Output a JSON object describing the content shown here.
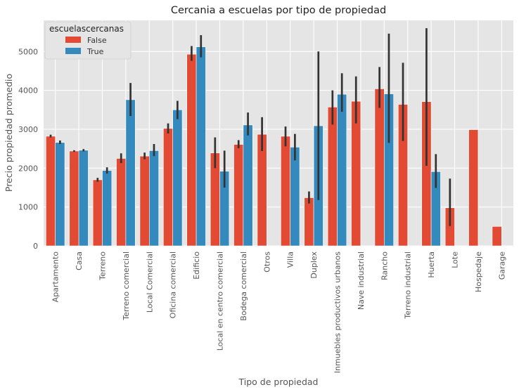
{
  "chart_data": {
    "type": "bar",
    "title": "Cercania a escuelas por tipo de propiedad",
    "xlabel": "Tipo de propiedad",
    "ylabel": "Precio propiedad promedio",
    "ylim": [
      0,
      5800
    ],
    "yticks": [
      0,
      1000,
      2000,
      3000,
      4000,
      5000
    ],
    "grid": true,
    "legend": {
      "title": "escuelascercanas",
      "placement": "top-left"
    },
    "categories": [
      "Apartamento",
      "Casa",
      "Terreno",
      "Terreno comercial",
      "Local Comercial",
      "Oficina comercial",
      "Edificio",
      "Local en centro comercial",
      "Bodega comercial",
      "Otros",
      "Villa",
      "Duplex",
      "Inmuebles productivos urbanos",
      "Nave industrial",
      "Rancho",
      "Terreno industrial",
      "Huerta",
      "Lote",
      "Hospedaje",
      "Garage"
    ],
    "series": [
      {
        "name": "False",
        "color": "#E24A33",
        "values": [
          2820,
          2440,
          1700,
          2250,
          2310,
          3020,
          4930,
          2390,
          2610,
          2870,
          2820,
          1240,
          3570,
          3720,
          4040,
          3640,
          3710,
          980,
          2990,
          500
        ],
        "err_low": [
          2790,
          2420,
          1650,
          2130,
          2230,
          2890,
          4760,
          2000,
          2510,
          2440,
          2560,
          1090,
          3120,
          3150,
          3550,
          2700,
          2060,
          510,
          null,
          null
        ],
        "err_high": [
          2860,
          2460,
          1750,
          2380,
          2400,
          3150,
          5140,
          2790,
          2720,
          3310,
          3070,
          1400,
          4000,
          4360,
          4600,
          4710,
          5600,
          1730,
          null,
          null
        ]
      },
      {
        "name": "True",
        "color": "#348ABD",
        "values": [
          2660,
          2460,
          1940,
          3760,
          2450,
          3500,
          5120,
          1920,
          3110,
          null,
          2540,
          3090,
          3900,
          null,
          3910,
          null,
          1910,
          null,
          null,
          null
        ],
        "err_low": [
          2620,
          2430,
          1860,
          3340,
          2310,
          3260,
          4850,
          1500,
          2840,
          null,
          2200,
          1180,
          3450,
          null,
          2650,
          null,
          1490,
          null,
          null,
          null
        ],
        "err_high": [
          2710,
          2490,
          2020,
          4190,
          2620,
          3730,
          5420,
          2450,
          3430,
          null,
          2880,
          5000,
          4440,
          null,
          5460,
          null,
          2360,
          null,
          null,
          null
        ]
      }
    ]
  }
}
